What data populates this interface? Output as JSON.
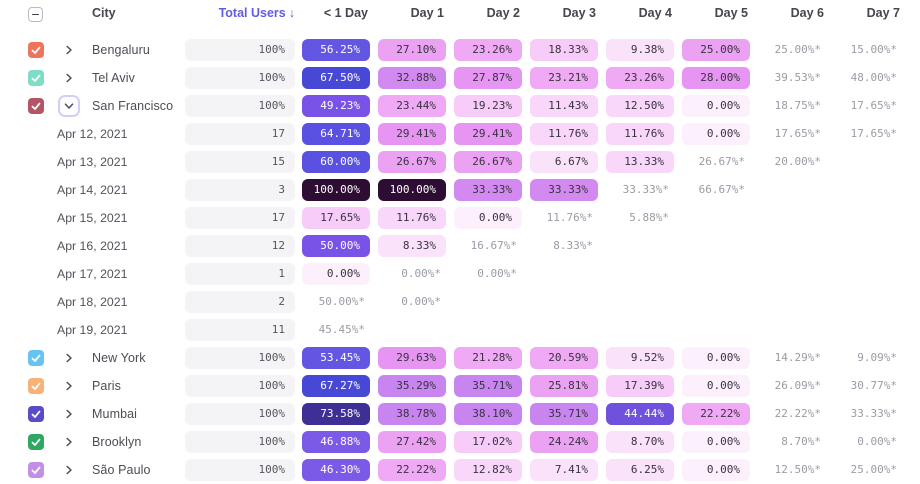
{
  "table": {
    "columns": [
      "City",
      "Total Users",
      "< 1 Day",
      "Day 1",
      "Day 2",
      "Day 3",
      "Day 4",
      "Day 5",
      "Day 6",
      "Day 7"
    ],
    "sort_arrow": "↓",
    "select_all_state": "indeterminate",
    "rows": [
      {
        "kind": "city",
        "label": "Bengaluru",
        "checkbox_color": "#f0745c",
        "checked": true,
        "expanded": false,
        "total": "100%",
        "cells": [
          {
            "text": "56.25%",
            "value": 56.25
          },
          {
            "text": "27.10%",
            "value": 27.1
          },
          {
            "text": "23.26%",
            "value": 23.26
          },
          {
            "text": "18.33%",
            "value": 18.33
          },
          {
            "text": "9.38%",
            "value": 9.38
          },
          {
            "text": "25.00%",
            "value": 25.0
          },
          {
            "text": "25.00%*",
            "muted": true
          },
          {
            "text": "15.00%*",
            "muted": true
          }
        ]
      },
      {
        "kind": "city",
        "label": "Tel Aviv",
        "checkbox_color": "#7eddc7",
        "checked": true,
        "expanded": false,
        "total": "100%",
        "cells": [
          {
            "text": "67.50%",
            "value": 67.5
          },
          {
            "text": "32.88%",
            "value": 32.88
          },
          {
            "text": "27.87%",
            "value": 27.87
          },
          {
            "text": "23.21%",
            "value": 23.21
          },
          {
            "text": "23.26%",
            "value": 23.26
          },
          {
            "text": "28.00%",
            "value": 28.0
          },
          {
            "text": "39.53%*",
            "muted": true
          },
          {
            "text": "48.00%*",
            "muted": true
          }
        ]
      },
      {
        "kind": "city",
        "label": "San Francisco",
        "checkbox_color": "#b25667",
        "checked": true,
        "expanded": true,
        "total": "100%",
        "cells": [
          {
            "text": "49.23%",
            "value": 49.23
          },
          {
            "text": "23.44%",
            "value": 23.44
          },
          {
            "text": "19.23%",
            "value": 19.23
          },
          {
            "text": "11.43%",
            "value": 11.43
          },
          {
            "text": "12.50%",
            "value": 12.5
          },
          {
            "text": "0.00%",
            "value": 0
          },
          {
            "text": "18.75%*",
            "muted": true
          },
          {
            "text": "17.65%*",
            "muted": true
          }
        ]
      },
      {
        "kind": "date",
        "label": "Apr 12, 2021",
        "total": "17",
        "cells": [
          {
            "text": "64.71%",
            "value": 64.71
          },
          {
            "text": "29.41%",
            "value": 29.41
          },
          {
            "text": "29.41%",
            "value": 29.41
          },
          {
            "text": "11.76%",
            "value": 11.76
          },
          {
            "text": "11.76%",
            "value": 11.76
          },
          {
            "text": "0.00%",
            "value": 0
          },
          {
            "text": "17.65%*",
            "muted": true
          },
          {
            "text": "17.65%*",
            "muted": true
          }
        ]
      },
      {
        "kind": "date",
        "label": "Apr 13, 2021",
        "total": "15",
        "cells": [
          {
            "text": "60.00%",
            "value": 60.0
          },
          {
            "text": "26.67%",
            "value": 26.67
          },
          {
            "text": "26.67%",
            "value": 26.67
          },
          {
            "text": "6.67%",
            "value": 6.67
          },
          {
            "text": "13.33%",
            "value": 13.33
          },
          {
            "text": "26.67%*",
            "muted": true
          },
          {
            "text": "20.00%*",
            "muted": true
          },
          null
        ]
      },
      {
        "kind": "date",
        "label": "Apr 14, 2021",
        "total": "3",
        "cells": [
          {
            "text": "100.00%",
            "value": 100
          },
          {
            "text": "100.00%",
            "value": 100
          },
          {
            "text": "33.33%",
            "value": 33.33
          },
          {
            "text": "33.33%",
            "value": 33.33
          },
          {
            "text": "33.33%*",
            "muted": true
          },
          {
            "text": "66.67%*",
            "muted": true
          },
          null,
          null
        ]
      },
      {
        "kind": "date",
        "label": "Apr 15, 2021",
        "total": "17",
        "cells": [
          {
            "text": "17.65%",
            "value": 17.65
          },
          {
            "text": "11.76%",
            "value": 11.76
          },
          {
            "text": "0.00%",
            "value": 0
          },
          {
            "text": "11.76%*",
            "muted": true
          },
          {
            "text": "5.88%*",
            "muted": true
          },
          null,
          null,
          null
        ]
      },
      {
        "kind": "date",
        "label": "Apr 16, 2021",
        "total": "12",
        "cells": [
          {
            "text": "50.00%",
            "value": 50.0
          },
          {
            "text": "8.33%",
            "value": 8.33
          },
          {
            "text": "16.67%*",
            "muted": true
          },
          {
            "text": "8.33%*",
            "muted": true
          },
          null,
          null,
          null,
          null
        ]
      },
      {
        "kind": "date",
        "label": "Apr 17, 2021",
        "total": "1",
        "cells": [
          {
            "text": "0.00%",
            "value": 0
          },
          {
            "text": "0.00%*",
            "muted": true
          },
          {
            "text": "0.00%*",
            "muted": true
          },
          null,
          null,
          null,
          null,
          null
        ]
      },
      {
        "kind": "date",
        "label": "Apr 18, 2021",
        "total": "2",
        "cells": [
          {
            "text": "50.00%*",
            "muted": true
          },
          {
            "text": "0.00%*",
            "muted": true
          },
          null,
          null,
          null,
          null,
          null,
          null
        ]
      },
      {
        "kind": "date",
        "label": "Apr 19, 2021",
        "total": "11",
        "cells": [
          {
            "text": "45.45%*",
            "muted": true
          },
          null,
          null,
          null,
          null,
          null,
          null,
          null
        ]
      },
      {
        "kind": "city",
        "label": "New York",
        "checkbox_color": "#67c3f2",
        "checked": true,
        "expanded": false,
        "total": "100%",
        "cells": [
          {
            "text": "53.45%",
            "value": 53.45
          },
          {
            "text": "29.63%",
            "value": 29.63
          },
          {
            "text": "21.28%",
            "value": 21.28
          },
          {
            "text": "20.59%",
            "value": 20.59
          },
          {
            "text": "9.52%",
            "value": 9.52
          },
          {
            "text": "0.00%",
            "value": 0
          },
          {
            "text": "14.29%*",
            "muted": true
          },
          {
            "text": "9.09%*",
            "muted": true
          }
        ]
      },
      {
        "kind": "city",
        "label": "Paris",
        "checkbox_color": "#f8b278",
        "checked": true,
        "expanded": false,
        "total": "100%",
        "cells": [
          {
            "text": "67.27%",
            "value": 67.27
          },
          {
            "text": "35.29%",
            "value": 35.29
          },
          {
            "text": "35.71%",
            "value": 35.71
          },
          {
            "text": "25.81%",
            "value": 25.81
          },
          {
            "text": "17.39%",
            "value": 17.39
          },
          {
            "text": "0.00%",
            "value": 0
          },
          {
            "text": "26.09%*",
            "muted": true
          },
          {
            "text": "30.77%*",
            "muted": true
          }
        ]
      },
      {
        "kind": "city",
        "label": "Mumbai",
        "checkbox_color": "#584dc6",
        "checked": true,
        "expanded": false,
        "total": "100%",
        "cells": [
          {
            "text": "73.58%",
            "value": 73.58
          },
          {
            "text": "38.78%",
            "value": 38.78
          },
          {
            "text": "38.10%",
            "value": 38.1
          },
          {
            "text": "35.71%",
            "value": 35.71
          },
          {
            "text": "44.44%",
            "value": 44.44
          },
          {
            "text": "22.22%",
            "value": 22.22
          },
          {
            "text": "22.22%*",
            "muted": true
          },
          {
            "text": "33.33%*",
            "muted": true
          }
        ]
      },
      {
        "kind": "city",
        "label": "Brooklyn",
        "checkbox_color": "#2da763",
        "checked": true,
        "expanded": false,
        "total": "100%",
        "cells": [
          {
            "text": "46.88%",
            "value": 46.88
          },
          {
            "text": "27.42%",
            "value": 27.42
          },
          {
            "text": "17.02%",
            "value": 17.02
          },
          {
            "text": "24.24%",
            "value": 24.24
          },
          {
            "text": "8.70%",
            "value": 8.7
          },
          {
            "text": "0.00%",
            "value": 0
          },
          {
            "text": "8.70%*",
            "muted": true
          },
          {
            "text": "0.00%*",
            "muted": true
          }
        ]
      },
      {
        "kind": "city",
        "label": "São Paulo",
        "checkbox_color": "#c38fe6",
        "checked": true,
        "expanded": false,
        "total": "100%",
        "cells": [
          {
            "text": "46.30%",
            "value": 46.3
          },
          {
            "text": "22.22%",
            "value": 22.22
          },
          {
            "text": "12.82%",
            "value": 12.82
          },
          {
            "text": "7.41%",
            "value": 7.41
          },
          {
            "text": "6.25%",
            "value": 6.25
          },
          {
            "text": "0.00%",
            "value": 0
          },
          {
            "text": "12.50%*",
            "muted": true
          },
          {
            "text": "25.00%*",
            "muted": true
          }
        ]
      }
    ]
  },
  "heat_scale": [
    {
      "max": 5.9,
      "bg": "#fcf0fd",
      "fg": "#38333f"
    },
    {
      "max": 10,
      "bg": "#fbe2fb",
      "fg": "#38333f"
    },
    {
      "max": 14,
      "bg": "#f9d7fa",
      "fg": "#38333f"
    },
    {
      "max": 20,
      "bg": "#f7ccf8",
      "fg": "#38333f"
    },
    {
      "max": 24,
      "bg": "#f0a9f4",
      "fg": "#38333f"
    },
    {
      "max": 27.5,
      "bg": "#eba2f3",
      "fg": "#38333f"
    },
    {
      "max": 30,
      "bg": "#e695f2",
      "fg": "#38333f"
    },
    {
      "max": 34,
      "bg": "#d38af0",
      "fg": "#38333f"
    },
    {
      "max": 40,
      "bg": "#c884ef",
      "fg": "#38333f"
    },
    {
      "max": 45,
      "bg": "#6e51dd",
      "fg": "#ffffff"
    },
    {
      "max": 48,
      "bg": "#7c5ae8",
      "fg": "#ffffff"
    },
    {
      "max": 52,
      "bg": "#7952e7",
      "fg": "#ffffff"
    },
    {
      "max": 58,
      "bg": "#6256e3",
      "fg": "#ffffff"
    },
    {
      "max": 66,
      "bg": "#5a50e2",
      "fg": "#ffffff"
    },
    {
      "max": 71,
      "bg": "#4848d7",
      "fg": "#ffffff"
    },
    {
      "max": 90,
      "bg": "#3d2f96",
      "fg": "#ffffff"
    },
    {
      "max": 100,
      "bg": "#2e0d34",
      "fg": "#ffffff"
    }
  ],
  "colors": {
    "sort_header": "#615ce8",
    "header_text": "#45454f",
    "muted_text": "#9b9ba6",
    "total_cell_bg": "#f4f3f6"
  }
}
